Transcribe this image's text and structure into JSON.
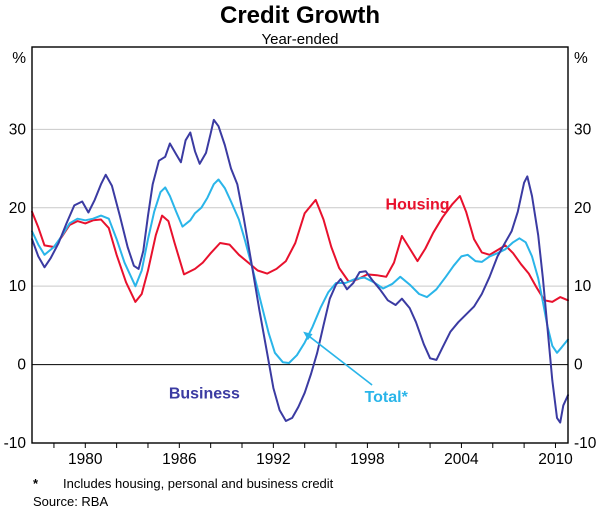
{
  "header": {
    "title": "Credit Growth",
    "subtitle": "Year-ended"
  },
  "footnotes": {
    "asterisk": "*",
    "note": "Includes housing, personal and business credit",
    "source": "Source: RBA"
  },
  "chart_data": {
    "type": "line",
    "title": "Credit Growth",
    "subtitle": "Year-ended",
    "unit": "%",
    "xlim": [
      1976.6,
      2010.8
    ],
    "ylim": [
      -10,
      40.5
    ],
    "yticks": [
      -10,
      0,
      10,
      20,
      30
    ],
    "xticks": [
      1980,
      1986,
      1992,
      1998,
      2004,
      2010
    ],
    "minor_tick_start": 1978,
    "minor_tick_step": 2,
    "grid": true,
    "grid_color": "#c9c9c9",
    "axis_color": "#000000",
    "series": [
      {
        "name": "Housing",
        "color": "#e8112d",
        "points": [
          [
            1976.6,
            19.5
          ],
          [
            1977,
            17.5
          ],
          [
            1977.4,
            15.2
          ],
          [
            1978,
            15
          ],
          [
            1978.5,
            16.3
          ],
          [
            1979,
            17.8
          ],
          [
            1979.5,
            18.3
          ],
          [
            1980,
            18
          ],
          [
            1980.5,
            18.4
          ],
          [
            1981,
            18.5
          ],
          [
            1981.5,
            17.4
          ],
          [
            1982,
            14
          ],
          [
            1982.6,
            10.5
          ],
          [
            1983.2,
            8
          ],
          [
            1983.6,
            9
          ],
          [
            1984,
            12
          ],
          [
            1984.5,
            16.5
          ],
          [
            1984.9,
            19
          ],
          [
            1985.3,
            18.3
          ],
          [
            1985.7,
            15.5
          ],
          [
            1986.3,
            11.5
          ],
          [
            1987,
            12.2
          ],
          [
            1987.5,
            13
          ],
          [
            1988,
            14.2
          ],
          [
            1988.6,
            15.5
          ],
          [
            1989.2,
            15.3
          ],
          [
            1989.8,
            14
          ],
          [
            1990.4,
            13
          ],
          [
            1991,
            12
          ],
          [
            1991.6,
            11.6
          ],
          [
            1992.2,
            12.2
          ],
          [
            1992.8,
            13.2
          ],
          [
            1993.4,
            15.5
          ],
          [
            1994,
            19.3
          ],
          [
            1994.7,
            21
          ],
          [
            1995.2,
            18.5
          ],
          [
            1995.7,
            15
          ],
          [
            1996.2,
            12.3
          ],
          [
            1996.8,
            10.6
          ],
          [
            1997.4,
            10.9
          ],
          [
            1998,
            11.5
          ],
          [
            1998.6,
            11.4
          ],
          [
            1999.2,
            11.2
          ],
          [
            1999.7,
            13
          ],
          [
            2000.2,
            16.4
          ],
          [
            2000.7,
            14.8
          ],
          [
            2001.2,
            13.2
          ],
          [
            2001.7,
            14.8
          ],
          [
            2002.2,
            16.8
          ],
          [
            2002.8,
            18.8
          ],
          [
            2003.4,
            20.4
          ],
          [
            2003.9,
            21.5
          ],
          [
            2004.3,
            19.5
          ],
          [
            2004.8,
            16
          ],
          [
            2005.3,
            14.3
          ],
          [
            2005.8,
            14
          ],
          [
            2006.3,
            14.6
          ],
          [
            2006.8,
            15.2
          ],
          [
            2007.3,
            14.2
          ],
          [
            2007.8,
            12.8
          ],
          [
            2008.3,
            11.6
          ],
          [
            2008.8,
            9.8
          ],
          [
            2009.3,
            8.2
          ],
          [
            2009.8,
            8
          ],
          [
            2010.3,
            8.6
          ],
          [
            2010.8,
            8.2
          ]
        ]
      },
      {
        "name": "Total",
        "color": "#2ab5e9",
        "points": [
          [
            1976.6,
            17
          ],
          [
            1977,
            15.3
          ],
          [
            1977.4,
            14
          ],
          [
            1978,
            15
          ],
          [
            1978.5,
            16.4
          ],
          [
            1979,
            18
          ],
          [
            1979.5,
            18.6
          ],
          [
            1980,
            18.4
          ],
          [
            1980.5,
            18.6
          ],
          [
            1981,
            19
          ],
          [
            1981.5,
            18.6
          ],
          [
            1982,
            16
          ],
          [
            1982.5,
            13
          ],
          [
            1983.2,
            10
          ],
          [
            1983.6,
            12
          ],
          [
            1984,
            16
          ],
          [
            1984.4,
            19.5
          ],
          [
            1984.8,
            22
          ],
          [
            1985.1,
            22.6
          ],
          [
            1985.4,
            21.5
          ],
          [
            1985.8,
            19.5
          ],
          [
            1986.2,
            17.6
          ],
          [
            1986.7,
            18.4
          ],
          [
            1987,
            19.3
          ],
          [
            1987.4,
            20
          ],
          [
            1987.8,
            21.3
          ],
          [
            1988.2,
            23
          ],
          [
            1988.5,
            23.6
          ],
          [
            1988.9,
            22.5
          ],
          [
            1989.3,
            20.8
          ],
          [
            1989.8,
            18.5
          ],
          [
            1990.2,
            15.8
          ],
          [
            1990.7,
            12
          ],
          [
            1991.2,
            8
          ],
          [
            1991.7,
            4
          ],
          [
            1992.1,
            1.5
          ],
          [
            1992.6,
            0.3
          ],
          [
            1993,
            0.2
          ],
          [
            1993.5,
            1.2
          ],
          [
            1994,
            2.8
          ],
          [
            1994.5,
            4.8
          ],
          [
            1995,
            7.2
          ],
          [
            1995.5,
            9.2
          ],
          [
            1996,
            10.4
          ],
          [
            1996.6,
            10.4
          ],
          [
            1997.2,
            10.9
          ],
          [
            1997.8,
            11.1
          ],
          [
            1998.4,
            10.5
          ],
          [
            1999,
            9.7
          ],
          [
            1999.6,
            10.3
          ],
          [
            2000.1,
            11.2
          ],
          [
            2000.7,
            10.2
          ],
          [
            2001.3,
            9
          ],
          [
            2001.8,
            8.6
          ],
          [
            2002.4,
            9.6
          ],
          [
            2003,
            11.2
          ],
          [
            2003.5,
            12.6
          ],
          [
            2004,
            13.8
          ],
          [
            2004.4,
            14
          ],
          [
            2004.9,
            13.2
          ],
          [
            2005.3,
            13.1
          ],
          [
            2005.8,
            13.8
          ],
          [
            2006.3,
            14.2
          ],
          [
            2006.8,
            14.7
          ],
          [
            2007.3,
            15.6
          ],
          [
            2007.7,
            16.1
          ],
          [
            2008.1,
            15.6
          ],
          [
            2008.5,
            13.8
          ],
          [
            2008.9,
            11
          ],
          [
            2009.2,
            8
          ],
          [
            2009.5,
            4.8
          ],
          [
            2009.8,
            2.4
          ],
          [
            2010.1,
            1.5
          ],
          [
            2010.4,
            2.2
          ],
          [
            2010.8,
            3.2
          ]
        ]
      },
      {
        "name": "Business",
        "color": "#3b3ba2",
        "points": [
          [
            1976.6,
            16
          ],
          [
            1977,
            13.8
          ],
          [
            1977.4,
            12.4
          ],
          [
            1977.8,
            13.6
          ],
          [
            1978.3,
            15.5
          ],
          [
            1978.8,
            18
          ],
          [
            1979.3,
            20.3
          ],
          [
            1979.8,
            20.8
          ],
          [
            1980.2,
            19.4
          ],
          [
            1980.6,
            21
          ],
          [
            1981,
            23
          ],
          [
            1981.3,
            24.2
          ],
          [
            1981.7,
            22.8
          ],
          [
            1982.2,
            19
          ],
          [
            1982.7,
            15
          ],
          [
            1983.1,
            12.6
          ],
          [
            1983.4,
            12.2
          ],
          [
            1983.7,
            14.5
          ],
          [
            1984,
            19
          ],
          [
            1984.3,
            23
          ],
          [
            1984.7,
            26
          ],
          [
            1985.1,
            26.5
          ],
          [
            1985.4,
            28.2
          ],
          [
            1985.8,
            26.8
          ],
          [
            1986.1,
            25.8
          ],
          [
            1986.4,
            28.6
          ],
          [
            1986.7,
            29.6
          ],
          [
            1987,
            27.2
          ],
          [
            1987.3,
            25.6
          ],
          [
            1987.7,
            27
          ],
          [
            1988,
            29.5
          ],
          [
            1988.2,
            31.2
          ],
          [
            1988.5,
            30.4
          ],
          [
            1988.9,
            28
          ],
          [
            1989.3,
            25
          ],
          [
            1989.7,
            23
          ],
          [
            1990.1,
            18.8
          ],
          [
            1990.6,
            13
          ],
          [
            1991.1,
            7
          ],
          [
            1991.6,
            1.5
          ],
          [
            1992,
            -3
          ],
          [
            1992.4,
            -5.8
          ],
          [
            1992.8,
            -7.2
          ],
          [
            1993.2,
            -6.8
          ],
          [
            1993.6,
            -5.4
          ],
          [
            1994,
            -3.6
          ],
          [
            1994.4,
            -1.2
          ],
          [
            1994.8,
            1.5
          ],
          [
            1995.2,
            5
          ],
          [
            1995.6,
            8.4
          ],
          [
            1996,
            10.2
          ],
          [
            1996.3,
            10.9
          ],
          [
            1996.7,
            9.6
          ],
          [
            1997.1,
            10.4
          ],
          [
            1997.5,
            11.8
          ],
          [
            1997.9,
            11.9
          ],
          [
            1998.3,
            10.8
          ],
          [
            1998.8,
            9.6
          ],
          [
            1999.3,
            8.2
          ],
          [
            1999.8,
            7.6
          ],
          [
            2000.2,
            8.4
          ],
          [
            2000.7,
            7.2
          ],
          [
            2001.1,
            5.4
          ],
          [
            2001.6,
            2.6
          ],
          [
            2002,
            0.8
          ],
          [
            2002.4,
            0.6
          ],
          [
            2002.8,
            2.2
          ],
          [
            2003.3,
            4.2
          ],
          [
            2003.8,
            5.4
          ],
          [
            2004.3,
            6.4
          ],
          [
            2004.8,
            7.4
          ],
          [
            2005.3,
            9
          ],
          [
            2005.8,
            11.2
          ],
          [
            2006.3,
            13.8
          ],
          [
            2006.8,
            15.6
          ],
          [
            2007.2,
            17
          ],
          [
            2007.6,
            19.5
          ],
          [
            2008,
            23.2
          ],
          [
            2008.2,
            24
          ],
          [
            2008.5,
            21.5
          ],
          [
            2008.9,
            16.5
          ],
          [
            2009.2,
            11
          ],
          [
            2009.5,
            4.5
          ],
          [
            2009.8,
            -2
          ],
          [
            2010.1,
            -6.8
          ],
          [
            2010.3,
            -7.4
          ],
          [
            2010.5,
            -5.2
          ],
          [
            2010.8,
            -3.9
          ]
        ]
      }
    ],
    "annotations": [
      {
        "text": "Housing",
        "x": 2001.2,
        "y": 19.8,
        "color": "#e8112d"
      },
      {
        "text": "Business",
        "x": 1987.6,
        "y": -4.3,
        "color": "#3b3ba2"
      },
      {
        "text": "Total*",
        "x": 1999.2,
        "y": -4.8,
        "color": "#2ab5e9"
      }
    ],
    "arrow": {
      "from": [
        1998.3,
        -2.6
      ],
      "to": [
        1993.9,
        4.2
      ],
      "color": "#2ab5e9"
    }
  }
}
